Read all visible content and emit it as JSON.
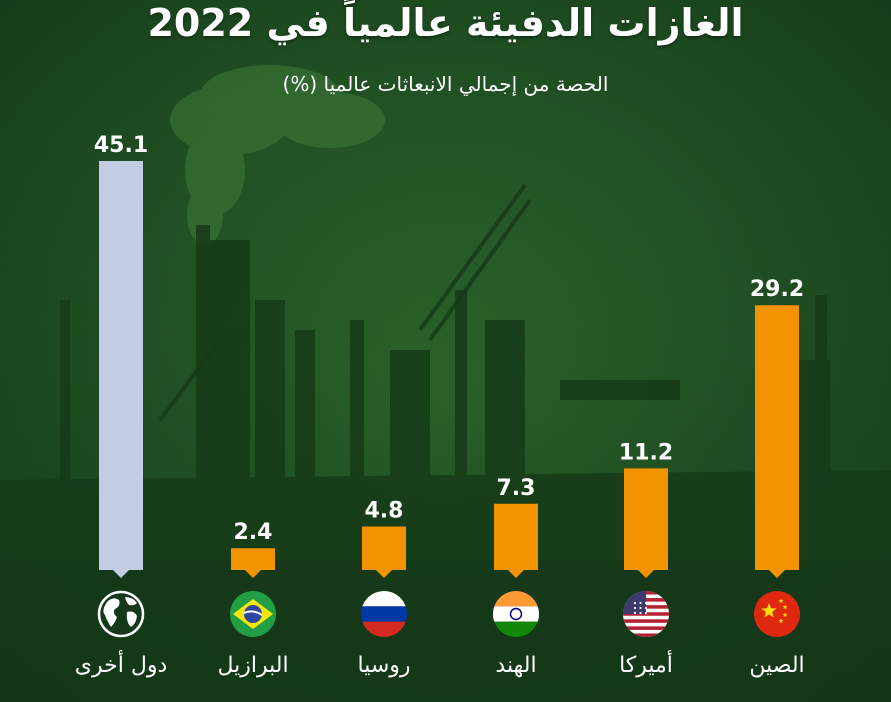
{
  "title": "الغازات الدفيئة عالمياً في 2022",
  "subtitle": "الحصة من إجمالي الانبعاثات عالميا (%)",
  "colors": {
    "background": "#235626",
    "bar_primary": "#f39300",
    "bar_other": "#c2cce3",
    "text": "#ffffff"
  },
  "chart_data": {
    "type": "bar",
    "categories": [
      "دول أخرى",
      "البرازيل",
      "روسيا",
      "الهند",
      "أميركا",
      "الصين"
    ],
    "values": [
      45.1,
      2.4,
      4.8,
      7.3,
      11.2,
      29.2
    ],
    "value_labels": [
      "45.1",
      "2.4",
      "4.8",
      "7.3",
      "11.2",
      "29.2"
    ],
    "icons": [
      "globe-icon",
      "brazil-flag-icon",
      "russia-flag-icon",
      "india-flag-icon",
      "usa-flag-icon",
      "china-flag-icon"
    ],
    "bar_colors": [
      "#c2cce3",
      "#f39300",
      "#f39300",
      "#f39300",
      "#f39300",
      "#f39300"
    ],
    "title": "الغازات الدفيئة عالمياً في 2022",
    "subtitle": "الحصة من إجمالي الانبعاثات عالميا (%)",
    "ylim": [
      0,
      45.1
    ],
    "grid": false,
    "legend": "none"
  }
}
